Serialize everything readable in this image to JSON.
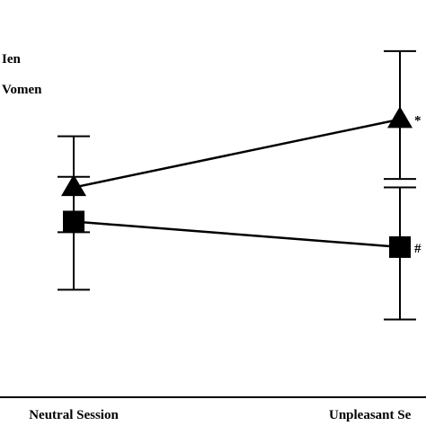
{
  "chart_data": {
    "type": "line",
    "categories": [
      "Neutral Session",
      "Unpleasant Se"
    ],
    "ylim": [
      0,
      10
    ],
    "series": [
      {
        "name": "Men",
        "legend_visible_text": "Ien",
        "marker": "triangle",
        "color": "#000000",
        "values": [
          5.6,
          7.2
        ],
        "error_upper": [
          6.8,
          8.8
        ],
        "error_lower": [
          4.55,
          5.8
        ],
        "annotations": [
          "",
          "*"
        ]
      },
      {
        "name": "Women",
        "legend_visible_text": "Vomen",
        "marker": "square",
        "color": "#000000",
        "values": [
          4.8,
          4.2
        ],
        "error_upper": [
          5.85,
          5.6
        ],
        "error_lower": [
          3.2,
          2.5
        ],
        "annotations": [
          "",
          "#"
        ]
      }
    ],
    "title": "",
    "xlabel": "",
    "ylabel": "",
    "grid": false,
    "legend_placement": "top-left"
  }
}
